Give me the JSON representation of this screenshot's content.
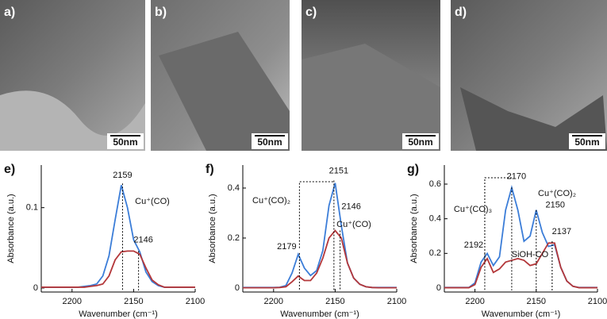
{
  "panels": [
    {
      "label": "a)",
      "scale": "50nm"
    },
    {
      "label": "b)",
      "scale": "50nm"
    },
    {
      "label": "c)",
      "scale": "50nm"
    },
    {
      "label": "d)",
      "scale": "50nm"
    }
  ],
  "chart_data": [
    {
      "type": "line",
      "panel_label": "e)",
      "xlabel": "Wavenumber (cm⁻¹)",
      "ylabel": "Absorbance (a.u.)",
      "xlim": [
        2225,
        2100
      ],
      "xticks": [
        2200,
        2150,
        2100
      ],
      "ylim": [
        -0.005,
        0.153
      ],
      "yticks": [
        0.0,
        0.1
      ],
      "x": [
        2225,
        2220,
        2215,
        2210,
        2205,
        2200,
        2195,
        2190,
        2185,
        2180,
        2175,
        2170,
        2165,
        2160,
        2155,
        2150,
        2145,
        2140,
        2135,
        2130,
        2125,
        2120,
        2115,
        2110,
        2105,
        2100
      ],
      "series": [
        {
          "color": "#3b7dd8",
          "values": [
            0.001,
            0.001,
            0.001,
            0.001,
            0.001,
            0.001,
            0.001,
            0.002,
            0.003,
            0.005,
            0.015,
            0.04,
            0.085,
            0.128,
            0.1,
            0.06,
            0.045,
            0.02,
            0.008,
            0.003,
            0.001,
            0.001,
            0.001,
            0.001,
            0.001,
            0.001
          ]
        },
        {
          "color": "#b3373a",
          "values": [
            0.001,
            0.001,
            0.001,
            0.001,
            0.001,
            0.001,
            0.001,
            0.001,
            0.002,
            0.003,
            0.005,
            0.015,
            0.035,
            0.045,
            0.046,
            0.046,
            0.042,
            0.025,
            0.01,
            0.004,
            0.001,
            0.001,
            0.001,
            0.001,
            0.001,
            0.001
          ]
        }
      ],
      "peaks": [
        {
          "label": "2159",
          "x": 2159,
          "y": 0.13
        },
        {
          "label": "2146",
          "x": 2146,
          "y": 0.046
        }
      ],
      "notes": [
        "Cu⁺(CO)"
      ]
    },
    {
      "type": "line",
      "panel_label": "f)",
      "xlabel": "Wavenumber (cm⁻¹)",
      "ylabel": "Absorbance (a.u.)",
      "xlim": [
        2225,
        2100
      ],
      "xticks": [
        2200,
        2150,
        2100
      ],
      "ylim": [
        -0.016,
        0.492
      ],
      "yticks": [
        0.0,
        0.2,
        0.4
      ],
      "x": [
        2225,
        2220,
        2215,
        2210,
        2205,
        2200,
        2195,
        2190,
        2185,
        2180,
        2175,
        2170,
        2165,
        2160,
        2155,
        2150,
        2145,
        2140,
        2135,
        2130,
        2125,
        2120,
        2115,
        2110,
        2105,
        2100
      ],
      "series": [
        {
          "color": "#3b7dd8",
          "values": [
            0.002,
            0.002,
            0.002,
            0.002,
            0.002,
            0.002,
            0.003,
            0.01,
            0.06,
            0.135,
            0.08,
            0.05,
            0.07,
            0.15,
            0.33,
            0.42,
            0.25,
            0.1,
            0.04,
            0.015,
            0.005,
            0.002,
            0.002,
            0.002,
            0.002,
            0.002
          ]
        },
        {
          "color": "#b3373a",
          "values": [
            0.001,
            0.001,
            0.001,
            0.001,
            0.001,
            0.001,
            0.002,
            0.005,
            0.025,
            0.048,
            0.03,
            0.03,
            0.06,
            0.12,
            0.2,
            0.23,
            0.2,
            0.1,
            0.04,
            0.015,
            0.005,
            0.002,
            0.001,
            0.001,
            0.001,
            0.001
          ]
        }
      ],
      "peaks": [
        {
          "label": "2179",
          "x": 2179,
          "y": 0.14
        },
        {
          "label": "2151",
          "x": 2151,
          "y": 0.43
        },
        {
          "label": "2146",
          "x": 2146,
          "y": 0.23
        }
      ],
      "notes": [
        "Cu⁺(CO)₂",
        "Cu⁺(CO)"
      ]
    },
    {
      "type": "line",
      "panel_label": "g)",
      "xlabel": "Wavenumber (cm⁻¹)",
      "ylabel": "Absorbance (a.u.)",
      "xlim": [
        2225,
        2100
      ],
      "xticks": [
        2200,
        2150,
        2100
      ],
      "ylim": [
        -0.023,
        0.71
      ],
      "yticks": [
        0.0,
        0.2,
        0.4,
        0.6
      ],
      "x": [
        2225,
        2220,
        2215,
        2210,
        2205,
        2200,
        2195,
        2190,
        2185,
        2180,
        2175,
        2170,
        2165,
        2160,
        2155,
        2150,
        2145,
        2140,
        2135,
        2130,
        2125,
        2120,
        2115,
        2110,
        2105,
        2100
      ],
      "series": [
        {
          "color": "#3b7dd8",
          "values": [
            0.003,
            0.003,
            0.003,
            0.003,
            0.003,
            0.03,
            0.15,
            0.2,
            0.13,
            0.18,
            0.45,
            0.58,
            0.45,
            0.27,
            0.3,
            0.45,
            0.32,
            0.24,
            0.25,
            0.12,
            0.04,
            0.01,
            0.003,
            0.003,
            0.003,
            0.003
          ]
        },
        {
          "color": "#b3373a",
          "values": [
            0.002,
            0.002,
            0.002,
            0.002,
            0.002,
            0.02,
            0.12,
            0.17,
            0.09,
            0.11,
            0.15,
            0.16,
            0.17,
            0.16,
            0.13,
            0.14,
            0.2,
            0.26,
            0.26,
            0.12,
            0.04,
            0.01,
            0.002,
            0.002,
            0.002,
            0.002
          ]
        }
      ],
      "peaks": [
        {
          "label": "2192",
          "x": 2192,
          "y": 0.2
        },
        {
          "label": "2170",
          "x": 2170,
          "y": 0.58
        },
        {
          "label": "2150",
          "x": 2150,
          "y": 0.45
        },
        {
          "label": "2137",
          "x": 2137,
          "y": 0.27
        }
      ],
      "notes": [
        "Cu⁺(CO)₃",
        "Cu⁺(CO)₂",
        "SiOH-CO"
      ]
    }
  ]
}
